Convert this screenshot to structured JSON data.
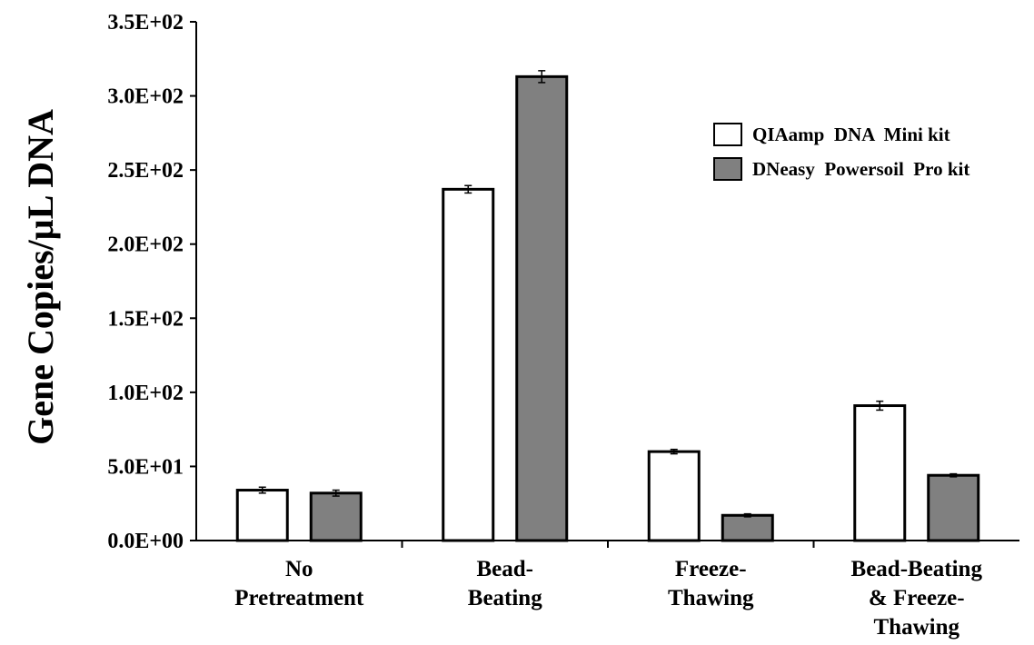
{
  "chart_data": {
    "type": "bar",
    "ylabel": "Gene Copies/µL DNA",
    "xlabel": "",
    "title": "",
    "ylim": [
      0,
      350
    ],
    "y_ticks": [
      0,
      50,
      100,
      150,
      200,
      250,
      300,
      350
    ],
    "y_tick_labels": [
      "0.0E+00",
      "5.0E+01",
      "1.0E+02",
      "1.5E+02",
      "2.0E+02",
      "2.5E+02",
      "3.0E+02",
      "3.5E+02"
    ],
    "categories": [
      [
        "No",
        "Pretreatment"
      ],
      [
        "Bead-",
        "Beating"
      ],
      [
        "Freeze-",
        "Thawing"
      ],
      [
        "Bead-Beating",
        "& Freeze-",
        "Thawing"
      ]
    ],
    "series": [
      {
        "name": "QIAamp  DNA  Mini kit",
        "color": "#ffffff",
        "values": [
          34,
          237,
          60,
          91
        ],
        "errors": [
          2,
          2.5,
          1.5,
          3
        ]
      },
      {
        "name": "DNeasy  Powersoil  Pro kit",
        "color": "#808080",
        "values": [
          32,
          313,
          17,
          44
        ],
        "errors": [
          2,
          4,
          1,
          1
        ]
      }
    ],
    "legend_position": "top-right",
    "grid": false
  }
}
